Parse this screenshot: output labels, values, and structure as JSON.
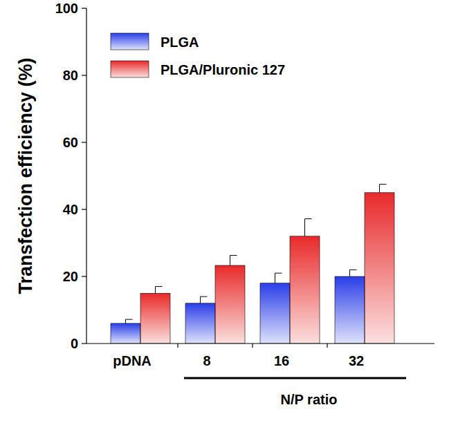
{
  "chart_data": {
    "type": "bar",
    "y_label": "Transfection efficiency (%)",
    "categories": [
      "pDNA",
      "8",
      "16",
      "32"
    ],
    "annotations": [
      "N/P ratio"
    ],
    "series": [
      {
        "name": "PLGA",
        "color": "#2a3ee8",
        "values": [
          6,
          12,
          18,
          20
        ],
        "errors": [
          1.2,
          2,
          3,
          2
        ]
      },
      {
        "name": "PLGA/Pluronic 127",
        "color": "#e82a2a",
        "values": [
          15,
          23.3,
          32,
          45
        ],
        "errors": [
          2,
          3,
          5.2,
          2.5
        ]
      }
    ],
    "ylim": [
      0,
      100
    ],
    "yticks": [
      0,
      20,
      40,
      60,
      80,
      100
    ],
    "grid": false,
    "legend": "upper left"
  }
}
